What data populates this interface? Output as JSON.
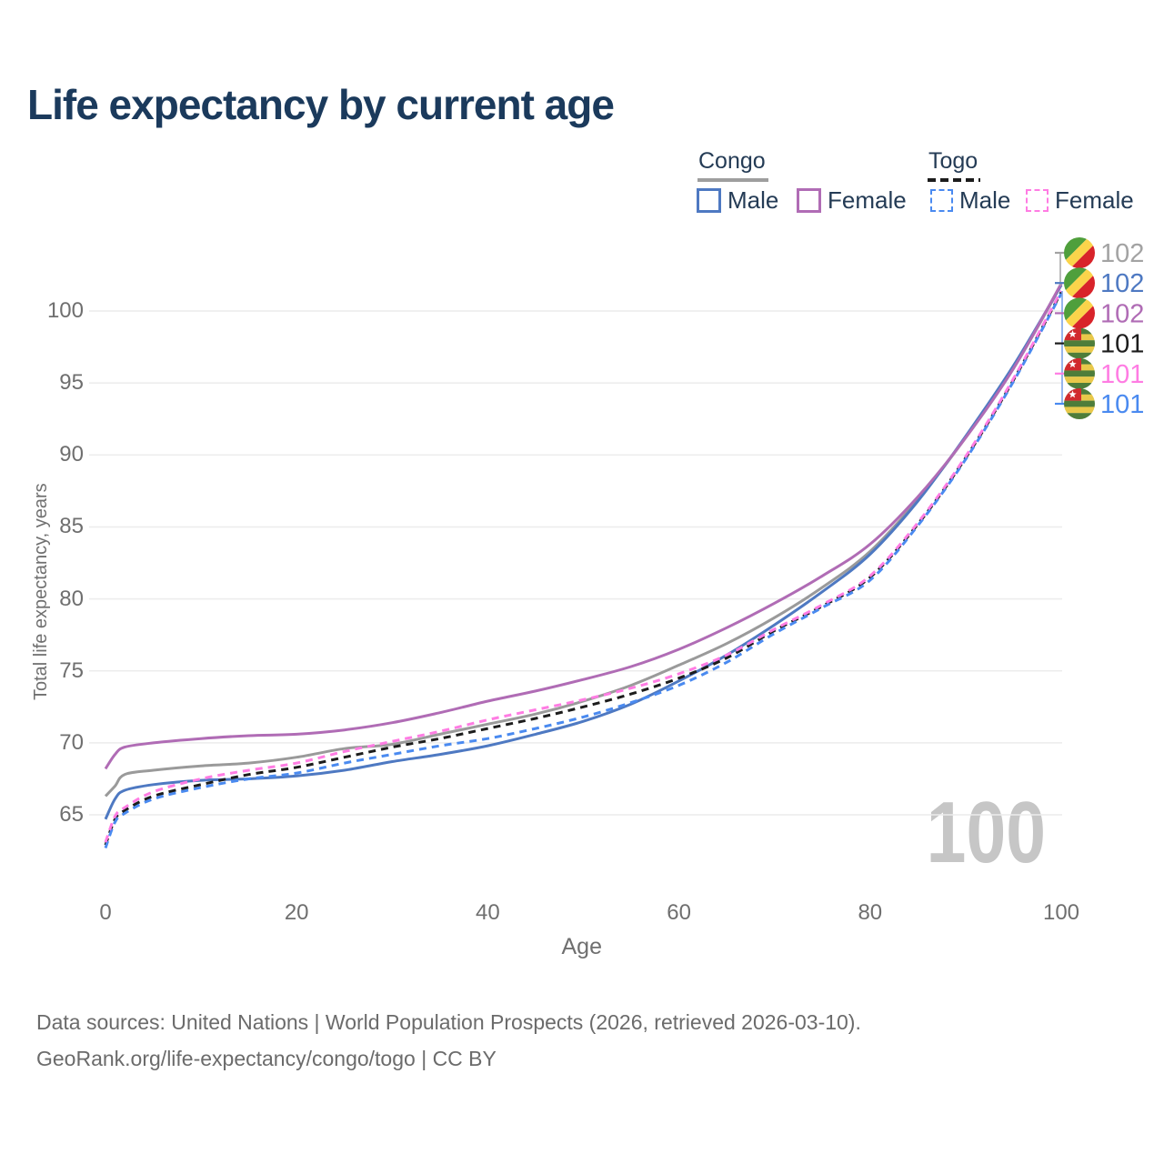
{
  "title": "Life expectancy by current age",
  "watermark_age": "100",
  "axes": {
    "x_label": "Age",
    "y_label": "Total life expectancy, years"
  },
  "legend": {
    "groups": [
      {
        "name": "Congo",
        "line_style": "solid",
        "underline_color": "#9e9e9e",
        "items": [
          {
            "label": "Male",
            "color": "#4e79c2",
            "dashed": false
          },
          {
            "label": "Female",
            "color": "#b06cb5",
            "dashed": false
          }
        ]
      },
      {
        "name": "Togo",
        "line_style": "dashed",
        "underline_color": "#1c1c1c",
        "items": [
          {
            "label": "Male",
            "color": "#4a8af0",
            "dashed": true
          },
          {
            "label": "Female",
            "color": "#ff7ce3",
            "dashed": true
          }
        ]
      }
    ]
  },
  "end_labels": [
    {
      "flag": "congo",
      "value": "102",
      "color": "#a3a3a3"
    },
    {
      "flag": "congo",
      "value": "102",
      "color": "#4e79c2"
    },
    {
      "flag": "congo",
      "value": "102",
      "color": "#b06cb5"
    },
    {
      "flag": "togo",
      "value": "101",
      "color": "#1c1c1c"
    },
    {
      "flag": "togo",
      "value": "101",
      "color": "#ff7ce3"
    },
    {
      "flag": "togo",
      "value": "101",
      "color": "#4a8af0"
    }
  ],
  "footer": {
    "line1": "Data sources: United Nations | World Population Prospects (2026, retrieved 2026-03-10).",
    "line2": "GeoRank.org/life-expectancy/congo/togo | CC BY"
  },
  "chart_data": {
    "type": "line",
    "title": "Life expectancy by current age",
    "xlabel": "Age",
    "ylabel": "Total life expectancy, years",
    "xlim": [
      0,
      100
    ],
    "ylim": [
      62,
      103
    ],
    "xticks": [
      0,
      20,
      40,
      60,
      80,
      100
    ],
    "yticks": [
      65,
      70,
      75,
      80,
      85,
      90,
      95,
      100
    ],
    "grid": "horizontal",
    "legend_position": "top-right",
    "x": [
      0,
      1,
      2,
      5,
      10,
      15,
      20,
      25,
      30,
      35,
      40,
      45,
      50,
      55,
      60,
      65,
      70,
      75,
      80,
      85,
      90,
      95,
      100
    ],
    "series": [
      {
        "name": "Congo Both sexes",
        "color": "#9a9a9a",
        "dashed": false,
        "values": [
          66.3,
          67.0,
          67.8,
          68.1,
          68.4,
          68.6,
          69.0,
          69.6,
          69.9,
          70.6,
          71.3,
          72.0,
          72.9,
          74.0,
          75.4,
          76.9,
          78.7,
          80.8,
          83.3,
          86.9,
          91.2,
          96.0,
          101.8
        ]
      },
      {
        "name": "Congo Male",
        "color": "#4e79c2",
        "dashed": false,
        "values": [
          64.7,
          66.1,
          66.7,
          67.1,
          67.4,
          67.5,
          67.7,
          68.1,
          68.7,
          69.2,
          69.8,
          70.6,
          71.5,
          72.7,
          74.3,
          76.1,
          78.2,
          80.5,
          83.1,
          86.8,
          91.3,
          96.2,
          101.8
        ]
      },
      {
        "name": "Congo Female",
        "color": "#b06cb5",
        "dashed": false,
        "values": [
          68.2,
          69.2,
          69.7,
          70.0,
          70.3,
          70.5,
          70.6,
          70.9,
          71.4,
          72.1,
          72.9,
          73.6,
          74.4,
          75.3,
          76.5,
          78.0,
          79.7,
          81.6,
          83.8,
          87.1,
          91.2,
          96.0,
          101.9
        ]
      },
      {
        "name": "Togo Both sexes",
        "color": "#1c1c1c",
        "dashed": true,
        "values": [
          62.9,
          64.7,
          65.3,
          66.3,
          67.1,
          67.8,
          68.3,
          69.0,
          69.7,
          70.3,
          71.0,
          71.7,
          72.5,
          73.4,
          74.5,
          75.9,
          77.8,
          79.5,
          81.5,
          85.2,
          89.8,
          95.2,
          101.3
        ]
      },
      {
        "name": "Togo Male",
        "color": "#4a8af0",
        "dashed": true,
        "values": [
          62.7,
          64.5,
          65.1,
          66.1,
          66.9,
          67.5,
          67.9,
          68.6,
          69.2,
          69.8,
          70.3,
          71.0,
          71.8,
          72.8,
          74.0,
          75.6,
          77.6,
          79.4,
          81.3,
          85.1,
          89.7,
          95.1,
          101.2
        ]
      },
      {
        "name": "Togo Female",
        "color": "#ff7ce3",
        "dashed": true,
        "values": [
          63.1,
          64.9,
          65.5,
          66.6,
          67.5,
          68.1,
          68.6,
          69.4,
          70.1,
          70.8,
          71.6,
          72.3,
          73.0,
          73.8,
          74.8,
          76.1,
          77.9,
          79.6,
          81.6,
          85.3,
          89.9,
          95.3,
          101.4
        ]
      }
    ]
  }
}
